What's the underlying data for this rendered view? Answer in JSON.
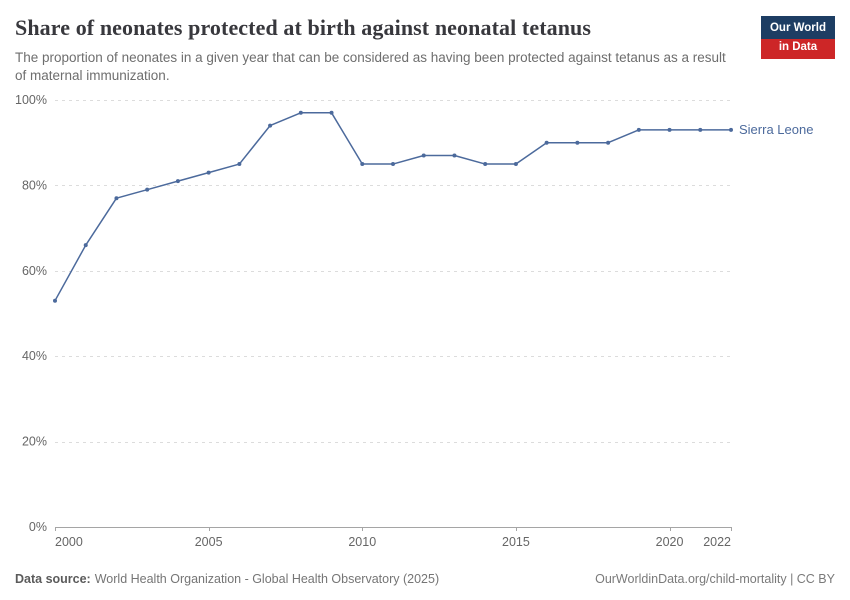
{
  "header": {
    "title": "Share of neonates protected at birth against neonatal tetanus",
    "subtitle": "The proportion of neonates in a given year that can be considered as having been protected against tetanus as a result of maternal immunization.",
    "logo": {
      "line1": "Our World",
      "line2": "in Data"
    }
  },
  "chart_data": {
    "type": "line",
    "title": "Share of neonates protected at birth against neonatal tetanus",
    "xlabel": "",
    "ylabel": "",
    "xlim": [
      2000,
      2022
    ],
    "ylim": [
      0,
      100
    ],
    "grid": "horizontal-dashed",
    "legend_position": "end-of-line",
    "yticks": [
      0,
      20,
      40,
      60,
      80,
      100
    ],
    "ytick_labels": [
      "0%",
      "20%",
      "40%",
      "60%",
      "80%",
      "100%"
    ],
    "xticks": [
      2000,
      2005,
      2010,
      2015,
      2020,
      2022
    ],
    "series": [
      {
        "name": "Sierra Leone",
        "color": "#4C6A9C",
        "x": [
          2000,
          2001,
          2002,
          2003,
          2004,
          2005,
          2006,
          2007,
          2008,
          2009,
          2010,
          2011,
          2012,
          2013,
          2014,
          2015,
          2016,
          2017,
          2018,
          2019,
          2020,
          2021,
          2022
        ],
        "values": [
          53,
          66,
          77,
          79,
          81,
          83,
          85,
          94,
          97,
          97,
          85,
          85,
          87,
          87,
          85,
          85,
          90,
          90,
          90,
          93,
          93,
          93,
          93
        ]
      }
    ]
  },
  "footer": {
    "source_label": "Data source:",
    "source_text": "World Health Organization - Global Health Observatory (2025)",
    "link_text": "OurWorldinData.org/child-mortality | CC BY"
  },
  "colors": {
    "line": "#4C6A9C",
    "logo_navy": "#1d3d63",
    "logo_red": "#cd2627",
    "gridline": "#dcdcdc",
    "axis_line": "#a5a5a5"
  }
}
